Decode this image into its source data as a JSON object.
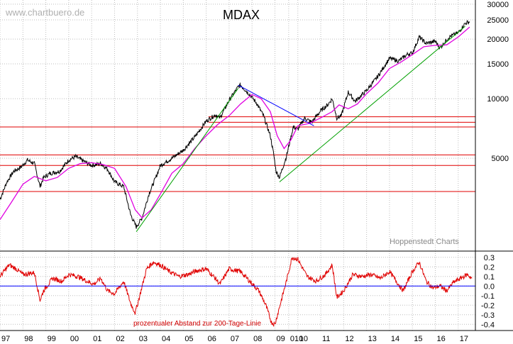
{
  "watermark": "www.chartbuero.de",
  "source_label": "Hoppenstedt Charts",
  "colors": {
    "price": "#000000",
    "ma200": "#e000e0",
    "trend_up": "#00a000",
    "trend_down": "#0000ff",
    "support": "#e00000",
    "oscillator": "#e00000",
    "zero_line": "#0000ff",
    "grid": "#bdbdbd"
  },
  "chart_data": [
    {
      "type": "line",
      "title": "MDAX",
      "y_scale": "log",
      "ylim": [
        1700,
        31500
      ],
      "xlim": [
        1997.0,
        2017.75
      ],
      "y_ticks": [
        30000,
        25000,
        20000,
        15000,
        10000,
        5000
      ],
      "y_tick_labels": [
        "30000",
        "25000",
        "20000",
        "15000",
        "10000",
        "5000"
      ],
      "x_tick_labels": [
        "97",
        "98",
        "99",
        "00",
        "01",
        "02",
        "03",
        "04",
        "05",
        "06",
        "07",
        "08",
        "09",
        "010",
        "10",
        "11",
        "12",
        "13",
        "14",
        "15",
        "16",
        "17"
      ],
      "x_tick_positions": [
        1997,
        1998,
        1999,
        2000,
        2001,
        2002,
        2003,
        2004,
        2005,
        2006,
        2007,
        2008,
        2009,
        2009.6,
        2010,
        2011,
        2012,
        2013,
        2014,
        2015,
        2016,
        2017
      ],
      "grid": true,
      "series": [
        {
          "key": "price",
          "x": [
            1997.0,
            1997.3,
            1997.6,
            1997.9,
            1998.2,
            1998.5,
            1998.75,
            1998.9,
            1999.2,
            1999.6,
            2000.0,
            2000.3,
            2000.7,
            2001.0,
            2001.4,
            2001.7,
            2002.0,
            2002.4,
            2002.7,
            2002.95,
            2003.2,
            2003.5,
            2003.8,
            2004.0,
            2004.5,
            2005.0,
            2005.5,
            2006.0,
            2006.4,
            2006.6,
            2007.0,
            2007.4,
            2007.5,
            2007.9,
            2008.2,
            2008.5,
            2008.8,
            2008.95,
            2009.05,
            2009.2,
            2009.5,
            2009.8,
            2010.0,
            2010.3,
            2010.6,
            2011.0,
            2011.3,
            2011.5,
            2011.7,
            2011.9,
            2012.2,
            2012.5,
            2013.0,
            2013.5,
            2014.0,
            2014.4,
            2014.8,
            2015.0,
            2015.3,
            2015.6,
            2016.0,
            2016.2,
            2016.6,
            2017.0,
            2017.3,
            2017.5
          ],
          "y": [
            3100,
            3800,
            4300,
            4500,
            4900,
            4700,
            3600,
            4000,
            4200,
            4300,
            4900,
            5100,
            4800,
            4600,
            4700,
            4400,
            3800,
            3600,
            2600,
            2250,
            2500,
            3300,
            4000,
            4600,
            5000,
            5500,
            6400,
            7700,
            8300,
            8000,
            9800,
            11500,
            11700,
            10500,
            9500,
            8200,
            6500,
            5200,
            4300,
            4000,
            5100,
            7200,
            7000,
            8000,
            7600,
            8700,
            9300,
            10000,
            8000,
            8200,
            10800,
            9700,
            11000,
            13000,
            16000,
            15500,
            16800,
            17000,
            20500,
            19000,
            19500,
            18000,
            20500,
            21500,
            24000,
            24500
          ]
        },
        {
          "key": "ma200",
          "x": [
            1997.0,
            1997.5,
            1998.0,
            1998.5,
            1999.0,
            1999.5,
            2000.0,
            2000.5,
            2001.0,
            2001.5,
            2002.0,
            2002.5,
            2002.9,
            2003.2,
            2003.6,
            2004.0,
            2004.5,
            2005.0,
            2005.5,
            2006.0,
            2006.5,
            2007.0,
            2007.5,
            2008.0,
            2008.4,
            2008.8,
            2009.1,
            2009.4,
            2009.7,
            2010.0,
            2010.5,
            2011.0,
            2011.5,
            2011.8,
            2012.2,
            2012.6,
            2013.0,
            2013.5,
            2014.0,
            2014.5,
            2015.0,
            2015.5,
            2016.0,
            2016.5,
            2017.0,
            2017.5
          ],
          "y": [
            2450,
            3000,
            3700,
            4050,
            3850,
            4000,
            4450,
            4700,
            4750,
            4650,
            4450,
            3600,
            2750,
            2500,
            2750,
            3300,
            4200,
            4700,
            5600,
            6500,
            7400,
            8200,
            9400,
            10500,
            10000,
            8600,
            6500,
            5600,
            6200,
            7300,
            7500,
            8000,
            8600,
            9300,
            8900,
            9400,
            10600,
            12000,
            14200,
            15300,
            16700,
            18300,
            18600,
            18700,
            20500,
            23000
          ]
        },
        {
          "key": "trend_up_1",
          "x": [
            2002.95,
            2007.4
          ],
          "y": [
            2130,
            11300
          ]
        },
        {
          "key": "trend_down",
          "x": [
            2007.4,
            2010.7
          ],
          "y": [
            11700,
            7300
          ]
        },
        {
          "key": "trend_up_2",
          "x": [
            2009.2,
            2017.3
          ],
          "y": [
            3800,
            23200
          ]
        }
      ],
      "horizontal_levels": [
        8100,
        7600,
        7200,
        5200,
        4600,
        3400
      ]
    },
    {
      "type": "line",
      "title": "",
      "annotation": "prozentualer Abstand zur 200-Tage-Linie",
      "ylim": [
        -0.45,
        0.35
      ],
      "y_ticks": [
        0.3,
        0.2,
        0.1,
        0.0,
        -0.1,
        -0.2,
        -0.3,
        -0.4
      ],
      "y_tick_labels": [
        "0.3",
        "0.2",
        "0.1",
        "0.0",
        "-0.1",
        "-0.2",
        "-0.3",
        "-0.4"
      ],
      "grid": true,
      "series": [
        {
          "key": "oscillator",
          "x": [
            1997.0,
            1997.4,
            1997.7,
            1998.0,
            1998.5,
            1998.75,
            1998.9,
            1999.3,
            1999.7,
            2000.0,
            2000.4,
            2000.8,
            2001.1,
            2001.4,
            2001.7,
            2002.0,
            2002.4,
            2002.7,
            2002.9,
            2003.1,
            2003.4,
            2003.7,
            2004.0,
            2004.4,
            2004.8,
            2005.2,
            2005.6,
            2006.0,
            2006.4,
            2006.6,
            2007.0,
            2007.5,
            2007.9,
            2008.3,
            2008.6,
            2008.85,
            2009.0,
            2009.2,
            2009.5,
            2009.75,
            2010.0,
            2010.4,
            2010.8,
            2011.2,
            2011.5,
            2011.7,
            2012.0,
            2012.4,
            2012.8,
            2013.2,
            2013.6,
            2014.0,
            2014.3,
            2014.6,
            2015.0,
            2015.3,
            2015.6,
            2015.9,
            2016.2,
            2016.5,
            2016.8,
            2017.1,
            2017.4,
            2017.6
          ],
          "y": [
            0.1,
            0.22,
            0.18,
            0.12,
            0.14,
            -0.15,
            -0.05,
            0.08,
            0.05,
            0.12,
            0.1,
            0.05,
            0.02,
            0.08,
            -0.05,
            -0.08,
            0.05,
            -0.18,
            -0.28,
            -0.1,
            0.18,
            0.25,
            0.22,
            0.15,
            0.1,
            0.12,
            0.16,
            0.18,
            0.08,
            0.02,
            0.18,
            0.15,
            0.05,
            -0.05,
            -0.2,
            -0.38,
            -0.4,
            -0.22,
            0.05,
            0.3,
            0.28,
            0.1,
            0.05,
            0.12,
            0.22,
            -0.12,
            -0.05,
            0.12,
            0.1,
            0.12,
            0.08,
            0.15,
            0.05,
            -0.05,
            0.15,
            0.25,
            0.05,
            -0.02,
            0.0,
            -0.05,
            0.04,
            0.08,
            0.12,
            0.08
          ]
        },
        {
          "key": "zero_line",
          "x": [
            1997.0,
            2017.75
          ],
          "y": [
            0.0,
            0.0
          ]
        }
      ]
    }
  ]
}
